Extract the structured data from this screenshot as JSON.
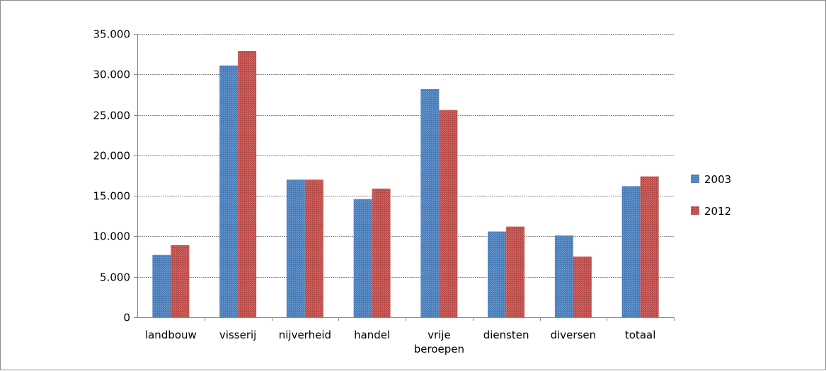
{
  "chart_data": {
    "type": "bar",
    "title": "",
    "xlabel": "",
    "ylabel": "",
    "categories": [
      [
        "landbouw"
      ],
      [
        "visserij"
      ],
      [
        "nijverheid"
      ],
      [
        "handel"
      ],
      [
        "vrije",
        "beroepen"
      ],
      [
        "diensten"
      ],
      [
        "diversen"
      ],
      [
        "totaal"
      ]
    ],
    "series": [
      {
        "name": "2003",
        "color": "#4f81bd",
        "values": [
          7700,
          31100,
          17000,
          14600,
          28200,
          10600,
          10100,
          16200
        ]
      },
      {
        "name": "2012",
        "color": "#c0504d",
        "values": [
          8900,
          32900,
          17000,
          15900,
          25600,
          11200,
          7500,
          17400
        ]
      }
    ],
    "ylim": [
      0,
      35000
    ],
    "yticks": [
      0,
      5000,
      10000,
      15000,
      20000,
      25000,
      30000,
      35000
    ],
    "ytick_labels": [
      "0",
      "5.000",
      "10.000",
      "15.000",
      "20.000",
      "25.000",
      "30.000",
      "35.000"
    ],
    "grid": true,
    "legend_position": "right"
  }
}
